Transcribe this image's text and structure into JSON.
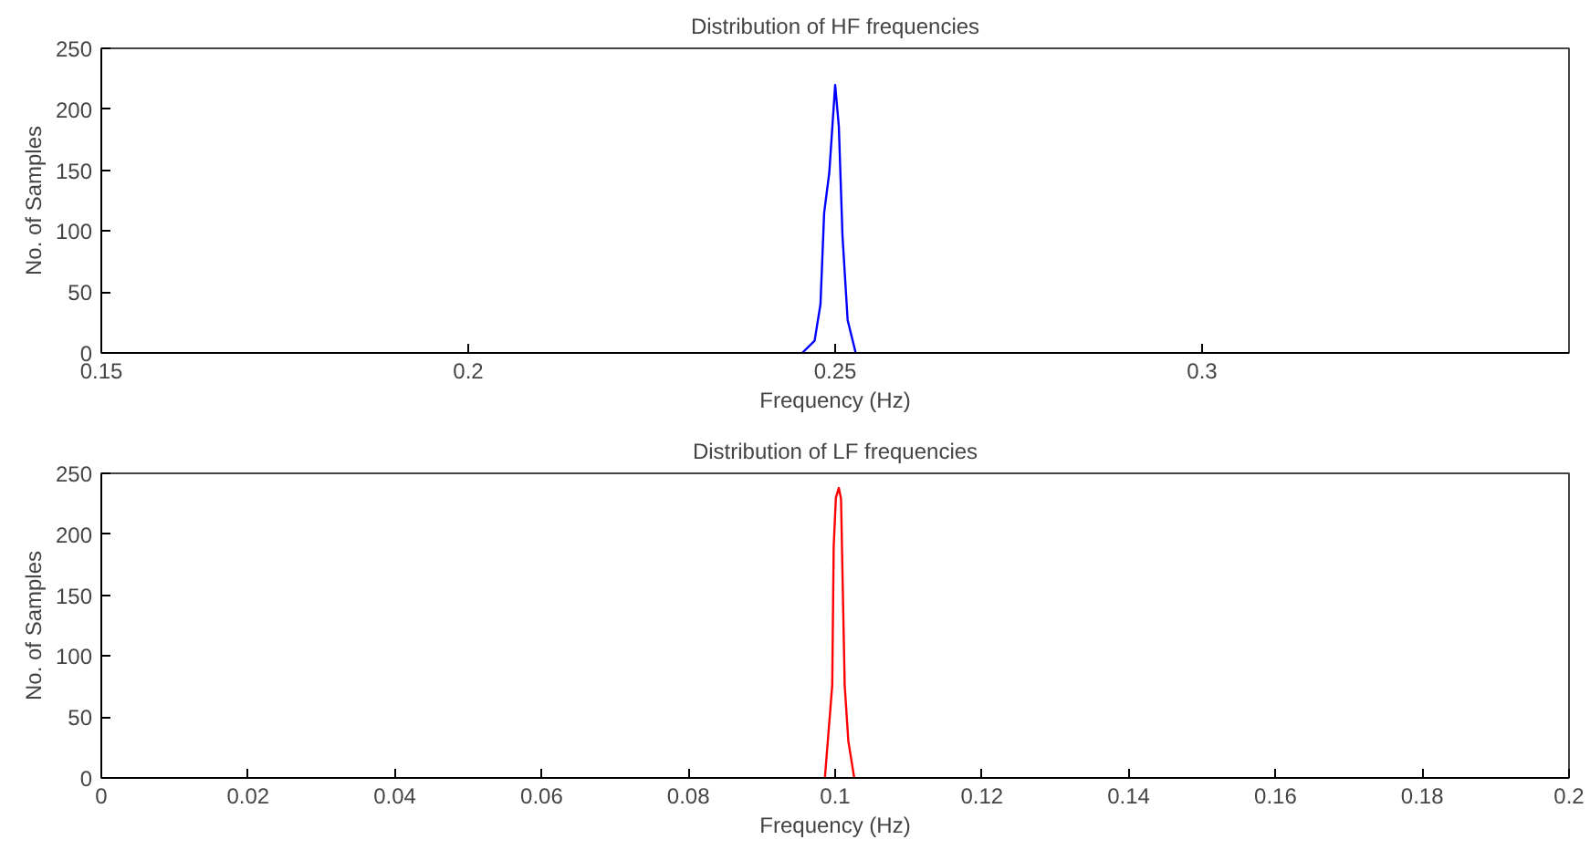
{
  "chart_data": [
    {
      "type": "line",
      "title": "Distribution of HF frequencies",
      "xlabel": "Frequency (Hz)",
      "ylabel": "No. of Samples",
      "x": [
        0.2455,
        0.2472,
        0.248,
        0.2485,
        0.2492,
        0.25,
        0.2505,
        0.251,
        0.2517,
        0.2528
      ],
      "series": [
        {
          "color": "#0000ff",
          "values": [
            0,
            10,
            40,
            115,
            148,
            220,
            186,
            96,
            27,
            0
          ]
        }
      ],
      "xlim": [
        0.15,
        0.35
      ],
      "xticks": [
        0.15,
        0.2,
        0.25,
        0.3
      ],
      "ylim": [
        0,
        250
      ],
      "yticks": [
        0,
        50,
        100,
        150,
        200,
        250
      ],
      "grid": false
    },
    {
      "type": "line",
      "title": "Distribution of LF frequencies",
      "xlabel": "Frequency (Hz)",
      "ylabel": "No. of Samples",
      "x": [
        0.0986,
        0.0991,
        0.0996,
        0.0998,
        0.1001,
        0.1005,
        0.1008,
        0.1013,
        0.1018,
        0.1026
      ],
      "series": [
        {
          "color": "#ff0000",
          "values": [
            0,
            38,
            76,
            190,
            230,
            238,
            229,
            76,
            30,
            0
          ]
        }
      ],
      "xlim": [
        0,
        0.2
      ],
      "xticks": [
        0,
        0.02,
        0.04,
        0.06,
        0.08,
        0.1,
        0.12,
        0.14,
        0.16,
        0.18,
        0.2
      ],
      "ylim": [
        0,
        250
      ],
      "yticks": [
        0,
        50,
        100,
        150,
        200,
        250
      ],
      "grid": false
    }
  ]
}
